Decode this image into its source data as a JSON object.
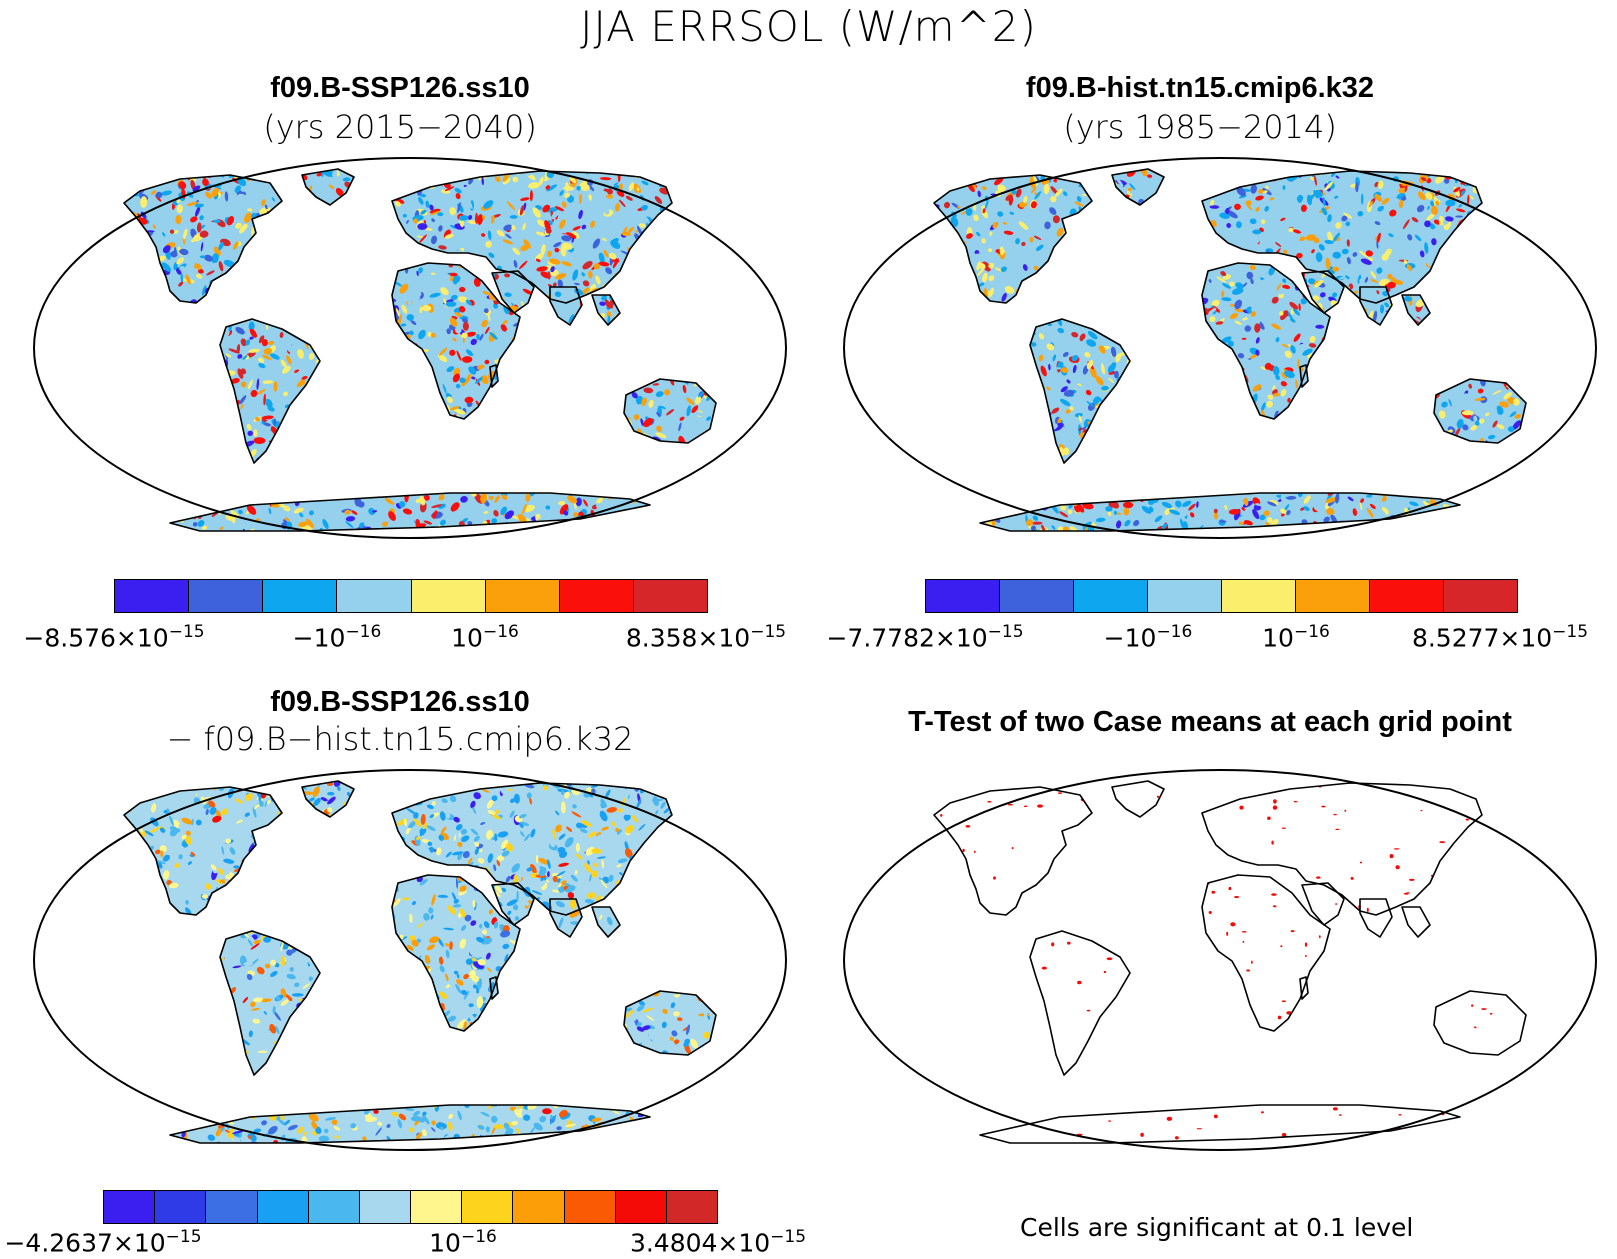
{
  "figure": {
    "title": "JJA ERRSOL (W/m^2)"
  },
  "panels": [
    {
      "title": "f09.B-SSP126.ss10",
      "subtitle": "(yrs 2015−2040)",
      "colorbar": {
        "colors": [
          "#3a1ff0",
          "#3e62dc",
          "#0fa6f0",
          "#95d0ec",
          "#fbee6d",
          "#fba00a",
          "#fb0f0a",
          "#d6262a"
        ],
        "labels": [
          {
            "base": "−8.576×10",
            "exp": "−15"
          },
          {
            "base": "−10",
            "exp": "−16"
          },
          {
            "base": "10",
            "exp": "−16"
          },
          {
            "base": "8.358×10",
            "exp": "−15"
          }
        ]
      }
    },
    {
      "title": "f09.B-hist.tn15.cmip6.k32",
      "subtitle": "(yrs 1985−2014)",
      "colorbar": {
        "colors": [
          "#3a1ff0",
          "#3e62dc",
          "#0fa6f0",
          "#95d0ec",
          "#fbee6d",
          "#fba00a",
          "#fb0f0a",
          "#d6262a"
        ],
        "labels": [
          {
            "base": "−7.7782×10",
            "exp": "−15"
          },
          {
            "base": "−10",
            "exp": "−16"
          },
          {
            "base": "10",
            "exp": "−16"
          },
          {
            "base": "8.5277×10",
            "exp": "−15"
          }
        ]
      }
    },
    {
      "title": "f09.B-SSP126.ss10",
      "subtitle": "− f09.B−hist.tn15.cmip6.k32",
      "colorbar": {
        "colors": [
          "#3a1ff0",
          "#2f3be6",
          "#3c6fe4",
          "#1aa0f2",
          "#4ab7ee",
          "#a8d8ee",
          "#fff78e",
          "#fdd31e",
          "#fb9e07",
          "#fb5a04",
          "#f40a06",
          "#d22828"
        ],
        "labels": [
          {
            "base": "−4.2637×10",
            "exp": "−15"
          },
          {
            "base": "10",
            "exp": "−16"
          },
          {
            "base": "3.4804×10",
            "exp": "−15"
          }
        ]
      }
    },
    {
      "title": "T-Test of two Case means at each grid point",
      "note": "Cells are significant at 0.1 level"
    }
  ]
}
